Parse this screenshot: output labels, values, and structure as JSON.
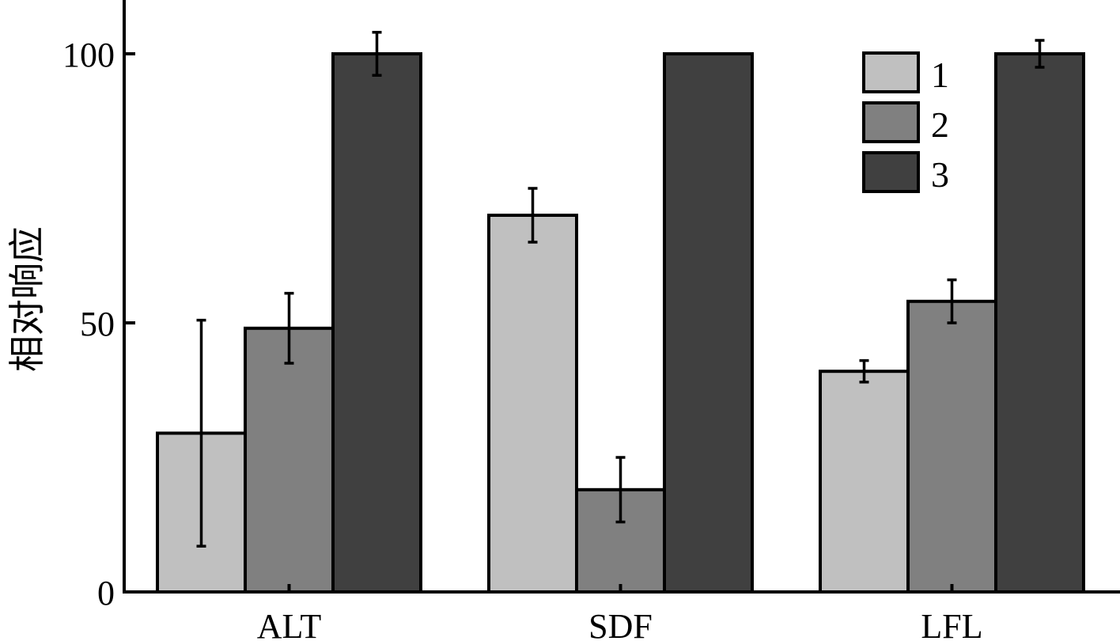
{
  "chart_data": {
    "type": "bar",
    "title": "",
    "xlabel": "",
    "ylabel": "相对响应",
    "categories": [
      "ALT",
      "SDF",
      "LFL"
    ],
    "ylim": [
      0,
      110
    ],
    "yticks": [
      0,
      50,
      100
    ],
    "grid": false,
    "legend_position": "top-right",
    "series": [
      {
        "name": "1",
        "color": "#c0c0c0",
        "values": [
          29.5,
          70,
          41
        ],
        "errors": [
          21,
          5,
          2
        ]
      },
      {
        "name": "2",
        "color": "#808080",
        "values": [
          49,
          19,
          54
        ],
        "errors": [
          6.5,
          6,
          4
        ]
      },
      {
        "name": "3",
        "color": "#404040",
        "values": [
          100,
          100,
          100
        ],
        "errors": [
          4,
          0,
          2.5
        ]
      }
    ]
  }
}
